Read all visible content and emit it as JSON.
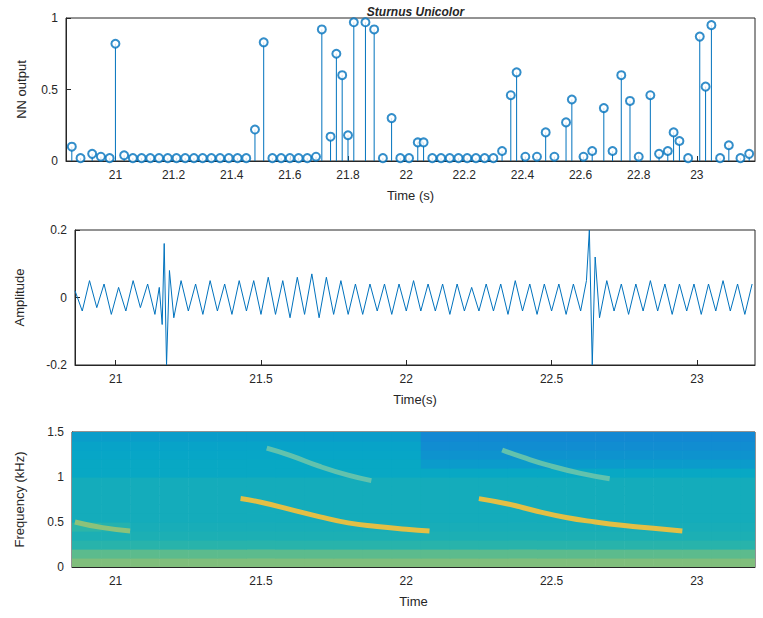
{
  "chart_data": [
    {
      "type": "stem",
      "title": "Sturnus Unicolor",
      "x_label": "Time (s)",
      "y_label": "NN output",
      "color": "#0072bd",
      "marker": "circle_open",
      "x": [
        20.85,
        20.88,
        20.92,
        20.95,
        20.98,
        21.0,
        21.03,
        21.06,
        21.09,
        21.12,
        21.15,
        21.18,
        21.21,
        21.24,
        21.27,
        21.3,
        21.33,
        21.36,
        21.39,
        21.42,
        21.45,
        21.48,
        21.51,
        21.54,
        21.57,
        21.6,
        21.63,
        21.66,
        21.69,
        21.71,
        21.74,
        21.76,
        21.78,
        21.8,
        21.82,
        21.86,
        21.89,
        21.92,
        21.95,
        21.98,
        22.01,
        22.04,
        22.06,
        22.09,
        22.12,
        22.15,
        22.18,
        22.21,
        22.24,
        22.27,
        22.3,
        22.33,
        22.36,
        22.38,
        22.41,
        22.45,
        22.48,
        22.51,
        22.55,
        22.57,
        22.61,
        22.64,
        22.68,
        22.71,
        22.74,
        22.77,
        22.8,
        22.84,
        22.87,
        22.9,
        22.92,
        22.94,
        22.97,
        23.01,
        23.03,
        23.05,
        23.08,
        23.11,
        23.15,
        23.18
      ],
      "values": [
        0.1,
        0.02,
        0.05,
        0.03,
        0.02,
        0.82,
        0.04,
        0.02,
        0.02,
        0.02,
        0.02,
        0.02,
        0.02,
        0.02,
        0.02,
        0.02,
        0.02,
        0.02,
        0.02,
        0.02,
        0.02,
        0.22,
        0.83,
        0.02,
        0.02,
        0.02,
        0.02,
        0.02,
        0.03,
        0.92,
        0.17,
        0.75,
        0.6,
        0.18,
        0.97,
        0.97,
        0.92,
        0.02,
        0.3,
        0.02,
        0.02,
        0.13,
        0.13,
        0.02,
        0.02,
        0.02,
        0.02,
        0.02,
        0.02,
        0.02,
        0.02,
        0.07,
        0.46,
        0.62,
        0.03,
        0.03,
        0.2,
        0.03,
        0.27,
        0.43,
        0.03,
        0.07,
        0.37,
        0.07,
        0.6,
        0.42,
        0.03,
        0.46,
        0.05,
        0.07,
        0.2,
        0.14,
        0.02,
        0.87,
        0.52,
        0.95,
        0.02,
        0.11,
        0.02,
        0.05
      ],
      "xlim": [
        20.83,
        23.2
      ],
      "xticks": [
        21,
        21.2,
        21.4,
        21.6,
        21.8,
        22,
        22.2,
        22.4,
        22.6,
        22.8,
        23
      ],
      "ylim": [
        0,
        1
      ],
      "yticks": [
        0,
        0.5,
        1
      ]
    },
    {
      "type": "line",
      "x_label": "Time(s)",
      "y_label": "Amplitude",
      "color": "#0072bd",
      "x": [
        20.86,
        20.885,
        20.91,
        20.935,
        20.96,
        20.985,
        21.01,
        21.035,
        21.06,
        21.085,
        21.11,
        21.135,
        21.15,
        21.16,
        21.167,
        21.175,
        21.185,
        21.2,
        21.225,
        21.25,
        21.275,
        21.3,
        21.325,
        21.35,
        21.375,
        21.4,
        21.425,
        21.45,
        21.475,
        21.5,
        21.525,
        21.55,
        21.575,
        21.6,
        21.625,
        21.65,
        21.675,
        21.7,
        21.725,
        21.75,
        21.775,
        21.8,
        21.825,
        21.85,
        21.875,
        21.9,
        21.925,
        21.95,
        21.975,
        22.0,
        22.025,
        22.05,
        22.075,
        22.1,
        22.125,
        22.15,
        22.175,
        22.2,
        22.225,
        22.25,
        22.275,
        22.3,
        22.325,
        22.35,
        22.375,
        22.4,
        22.425,
        22.45,
        22.475,
        22.5,
        22.525,
        22.55,
        22.575,
        22.6,
        22.62,
        22.63,
        22.64,
        22.65,
        22.665,
        22.69,
        22.715,
        22.74,
        22.765,
        22.79,
        22.815,
        22.84,
        22.865,
        22.89,
        22.915,
        22.94,
        22.965,
        22.99,
        23.015,
        23.04,
        23.065,
        23.09,
        23.115,
        23.14,
        23.165,
        23.19
      ],
      "values": [
        0.02,
        -0.04,
        0.05,
        -0.03,
        0.04,
        -0.05,
        0.03,
        -0.04,
        0.05,
        -0.03,
        0.04,
        -0.05,
        0.03,
        -0.08,
        0.16,
        -0.2,
        0.08,
        -0.06,
        0.05,
        -0.04,
        0.04,
        -0.05,
        0.05,
        -0.04,
        0.04,
        -0.05,
        0.05,
        -0.04,
        0.05,
        -0.05,
        0.06,
        -0.05,
        0.05,
        -0.06,
        0.06,
        -0.05,
        0.07,
        -0.06,
        0.06,
        -0.05,
        0.05,
        -0.05,
        0.04,
        -0.05,
        0.04,
        -0.04,
        0.04,
        -0.05,
        0.04,
        -0.04,
        0.05,
        -0.04,
        0.04,
        -0.04,
        0.04,
        -0.05,
        0.04,
        -0.04,
        0.03,
        -0.04,
        0.04,
        -0.04,
        0.04,
        -0.05,
        0.05,
        -0.04,
        0.04,
        -0.05,
        0.04,
        -0.04,
        0.04,
        -0.05,
        0.04,
        -0.04,
        0.05,
        0.2,
        -0.2,
        0.12,
        -0.06,
        0.05,
        -0.04,
        0.04,
        -0.05,
        0.04,
        -0.04,
        0.05,
        -0.04,
        0.04,
        -0.05,
        0.04,
        -0.04,
        0.04,
        -0.05,
        0.04,
        -0.04,
        0.05,
        -0.04,
        0.04,
        -0.05,
        0.04
      ],
      "xlim": [
        20.86,
        23.2
      ],
      "xticks": [
        21,
        21.5,
        22,
        22.5,
        23
      ],
      "ylim": [
        -0.2,
        0.2
      ],
      "yticks": [
        -0.2,
        0,
        0.2
      ]
    },
    {
      "type": "heatmap",
      "x_label": "Time",
      "y_label": "Frequency (kHz)",
      "x": [
        20.9,
        21.0,
        21.1,
        21.2,
        21.3,
        21.4,
        21.5,
        21.6,
        21.7,
        21.8,
        21.9,
        22.0,
        22.1,
        22.2,
        22.3,
        22.4,
        22.5,
        22.6,
        22.7,
        22.8,
        22.9,
        23.0,
        23.1,
        23.2
      ],
      "y": [
        0.05,
        0.15,
        0.25,
        0.35,
        0.45,
        0.55,
        0.65,
        0.75,
        0.85,
        0.95,
        1.05,
        1.15,
        1.25,
        1.35,
        1.45
      ],
      "z": [
        [
          0.6,
          0.6,
          0.6,
          0.6,
          0.6,
          0.6,
          0.6,
          0.6,
          0.6,
          0.6,
          0.6,
          0.6,
          0.6,
          0.6,
          0.6,
          0.6,
          0.6,
          0.6,
          0.6,
          0.6,
          0.6,
          0.6,
          0.6,
          0.6
        ],
        [
          0.55,
          0.55,
          0.55,
          0.55,
          0.55,
          0.55,
          0.55,
          0.55,
          0.55,
          0.55,
          0.55,
          0.55,
          0.55,
          0.55,
          0.55,
          0.55,
          0.55,
          0.55,
          0.55,
          0.55,
          0.55,
          0.55,
          0.55,
          0.55
        ],
        [
          0.46,
          0.46,
          0.46,
          0.46,
          0.46,
          0.46,
          0.46,
          0.46,
          0.46,
          0.46,
          0.46,
          0.46,
          0.46,
          0.46,
          0.46,
          0.46,
          0.46,
          0.46,
          0.46,
          0.46,
          0.46,
          0.46,
          0.46,
          0.46
        ],
        [
          0.43,
          0.43,
          0.43,
          0.43,
          0.43,
          0.43,
          0.43,
          0.43,
          0.43,
          0.43,
          0.43,
          0.43,
          0.43,
          0.43,
          0.43,
          0.43,
          0.43,
          0.43,
          0.43,
          0.43,
          0.43,
          0.43,
          0.43,
          0.43
        ],
        [
          0.47,
          0.45,
          0.42,
          0.42,
          0.42,
          0.42,
          0.42,
          0.42,
          0.42,
          0.42,
          0.42,
          0.42,
          0.42,
          0.42,
          0.42,
          0.42,
          0.42,
          0.42,
          0.42,
          0.42,
          0.42,
          0.42,
          0.42,
          0.42
        ],
        [
          0.41,
          0.41,
          0.41,
          0.41,
          0.41,
          0.41,
          0.41,
          0.41,
          0.41,
          0.41,
          0.41,
          0.41,
          0.41,
          0.41,
          0.41,
          0.41,
          0.41,
          0.41,
          0.41,
          0.41,
          0.41,
          0.41,
          0.41,
          0.41
        ],
        [
          0.41,
          0.41,
          0.41,
          0.41,
          0.41,
          0.41,
          0.41,
          0.41,
          0.41,
          0.41,
          0.41,
          0.41,
          0.41,
          0.41,
          0.41,
          0.41,
          0.41,
          0.41,
          0.41,
          0.41,
          0.41,
          0.41,
          0.41,
          0.41
        ],
        [
          0.41,
          0.41,
          0.41,
          0.41,
          0.41,
          0.41,
          0.41,
          0.41,
          0.41,
          0.41,
          0.41,
          0.41,
          0.41,
          0.41,
          0.41,
          0.41,
          0.41,
          0.41,
          0.41,
          0.41,
          0.41,
          0.41,
          0.41,
          0.41
        ],
        [
          0.41,
          0.41,
          0.41,
          0.41,
          0.41,
          0.41,
          0.41,
          0.41,
          0.41,
          0.41,
          0.41,
          0.41,
          0.41,
          0.41,
          0.41,
          0.41,
          0.41,
          0.41,
          0.41,
          0.41,
          0.41,
          0.41,
          0.41,
          0.41
        ],
        [
          0.41,
          0.41,
          0.41,
          0.41,
          0.41,
          0.41,
          0.41,
          0.41,
          0.41,
          0.41,
          0.41,
          0.41,
          0.41,
          0.41,
          0.41,
          0.41,
          0.41,
          0.41,
          0.41,
          0.41,
          0.41,
          0.41,
          0.41,
          0.41
        ],
        [
          0.38,
          0.38,
          0.38,
          0.38,
          0.38,
          0.38,
          0.38,
          0.38,
          0.38,
          0.38,
          0.38,
          0.38,
          0.38,
          0.38,
          0.38,
          0.38,
          0.38,
          0.38,
          0.38,
          0.38,
          0.38,
          0.38,
          0.38,
          0.38
        ],
        [
          0.38,
          0.38,
          0.38,
          0.38,
          0.38,
          0.38,
          0.38,
          0.38,
          0.38,
          0.38,
          0.38,
          0.38,
          0.33,
          0.33,
          0.33,
          0.33,
          0.33,
          0.33,
          0.33,
          0.33,
          0.33,
          0.33,
          0.33,
          0.33
        ],
        [
          0.37,
          0.37,
          0.37,
          0.37,
          0.37,
          0.37,
          0.37,
          0.37,
          0.37,
          0.37,
          0.37,
          0.37,
          0.3,
          0.3,
          0.3,
          0.3,
          0.3,
          0.3,
          0.3,
          0.3,
          0.3,
          0.3,
          0.3,
          0.3
        ],
        [
          0.36,
          0.36,
          0.36,
          0.36,
          0.36,
          0.36,
          0.36,
          0.36,
          0.36,
          0.36,
          0.36,
          0.36,
          0.28,
          0.28,
          0.28,
          0.28,
          0.28,
          0.28,
          0.28,
          0.28,
          0.28,
          0.28,
          0.28,
          0.28
        ],
        [
          0.34,
          0.34,
          0.34,
          0.34,
          0.34,
          0.34,
          0.34,
          0.34,
          0.34,
          0.34,
          0.34,
          0.34,
          0.26,
          0.26,
          0.26,
          0.26,
          0.26,
          0.26,
          0.26,
          0.26,
          0.26,
          0.26,
          0.26,
          0.26
        ]
      ],
      "zlim": [
        0,
        1
      ],
      "series": [
        {
          "type": "line",
          "color": "#e3bf45",
          "x": [
            21.43,
            21.5,
            21.6,
            21.7,
            21.8,
            21.9,
            22.0,
            22.08
          ],
          "values": [
            0.76,
            0.72,
            0.64,
            0.56,
            0.49,
            0.45,
            0.42,
            0.4
          ]
        },
        {
          "type": "line",
          "color": "#62c2ad",
          "x": [
            21.52,
            21.6,
            21.7,
            21.8,
            21.88
          ],
          "values": [
            1.32,
            1.24,
            1.12,
            1.02,
            0.96
          ]
        },
        {
          "type": "line",
          "color": "#e3bf45",
          "x": [
            22.25,
            22.35,
            22.45,
            22.55,
            22.65,
            22.75,
            22.85,
            22.95
          ],
          "values": [
            0.76,
            0.7,
            0.62,
            0.55,
            0.5,
            0.46,
            0.43,
            0.4
          ]
        },
        {
          "type": "line",
          "color": "#62c2ad",
          "x": [
            22.33,
            22.4,
            22.5,
            22.6,
            22.7
          ],
          "values": [
            1.3,
            1.22,
            1.12,
            1.04,
            0.98
          ]
        },
        {
          "type": "line",
          "color": "#8cc27a",
          "x": [
            20.86,
            20.95,
            21.05
          ],
          "values": [
            0.5,
            0.44,
            0.4
          ]
        }
      ],
      "xlim": [
        20.85,
        23.2
      ],
      "xticks": [
        21,
        21.5,
        22,
        22.5,
        23
      ],
      "ylim": [
        0,
        1.5
      ],
      "yticks": [
        0,
        0.5,
        1,
        1.5
      ]
    }
  ]
}
